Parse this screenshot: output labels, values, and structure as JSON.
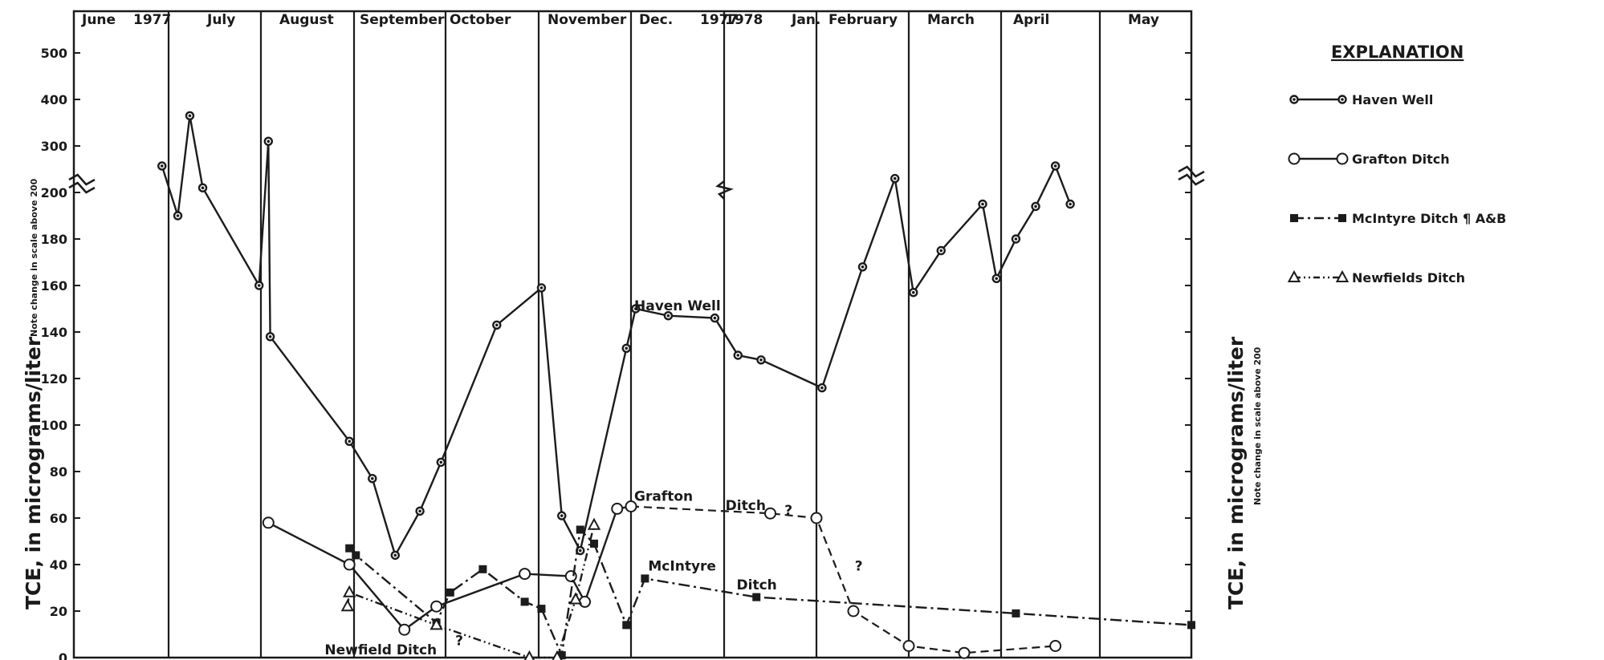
{
  "chart_data": {
    "type": "line",
    "month_labels": [
      "June",
      "1977",
      "July",
      "August",
      "September",
      "October",
      "November",
      "Dec.",
      "1977",
      "1978",
      "Jan.",
      "February",
      "March",
      "April",
      "May"
    ],
    "y_tick_labels": [
      "0",
      "20",
      "40",
      "60",
      "80",
      "100",
      "120",
      "140",
      "160",
      "180",
      "200",
      "300",
      "400",
      "500"
    ],
    "ylabel_left": "TCE, in micrograms/liter",
    "ylabel_left_note": "Note change in scale above 200",
    "ylabel_right": "TCE, in micrograms/liter",
    "ylabel_right_note": "Note change in scale above 200",
    "x_unit": "months since start of June 1977",
    "xlim": [
      0,
      12
    ],
    "ylim": [
      0,
      500
    ],
    "y_scale_break": 200,
    "legend": {
      "title": "EXPLANATION",
      "entries": [
        {
          "label": "Haven Well",
          "style": "solid-dot"
        },
        {
          "label": "Grafton Ditch",
          "style": "solid-open-circle"
        },
        {
          "label": "McIntyre Ditch ¶ A&B",
          "style": "dash-dot-square"
        },
        {
          "label": "Newfields Ditch",
          "style": "dash-dot-dot-triangle"
        }
      ],
      "placement": "top-right"
    },
    "annotations": [
      {
        "text": "Haven Well",
        "x": 6.0,
        "y": 148
      },
      {
        "text": "Grafton",
        "x": 6.0,
        "y": 66
      },
      {
        "text": "Ditch",
        "x": 6.98,
        "y": 62
      },
      {
        "text": "?",
        "x": 7.62,
        "y": 60
      },
      {
        "text": "?",
        "x": 8.38,
        "y": 36
      },
      {
        "text": "McIntyre",
        "x": 6.15,
        "y": 36
      },
      {
        "text": "Ditch",
        "x": 7.1,
        "y": 28
      },
      {
        "text": "Newfield Ditch",
        "x": 2.65,
        "y": 0
      },
      {
        "text": "?",
        "x": 4.07,
        "y": 4
      }
    ],
    "series": [
      {
        "name": "Haven Well",
        "line": "solid",
        "marker": "dot",
        "points": [
          [
            0.93,
            257
          ],
          [
            1.1,
            190
          ],
          [
            1.23,
            365
          ],
          [
            1.37,
            210
          ],
          [
            1.98,
            160
          ],
          [
            2.08,
            310
          ],
          [
            2.1,
            138
          ],
          [
            2.95,
            93
          ],
          [
            3.2,
            77
          ],
          [
            3.45,
            44
          ],
          [
            3.72,
            63
          ],
          [
            3.95,
            84
          ],
          [
            4.55,
            143
          ],
          [
            5.03,
            159
          ],
          [
            5.25,
            61
          ],
          [
            5.45,
            46
          ],
          [
            5.95,
            133
          ],
          [
            6.05,
            150
          ],
          [
            6.4,
            147
          ],
          [
            6.9,
            146
          ],
          [
            7.15,
            130
          ],
          [
            7.4,
            128
          ],
          [
            8.06,
            116
          ],
          [
            8.5,
            168
          ],
          [
            8.85,
            230
          ],
          [
            9.05,
            157
          ],
          [
            9.35,
            175
          ],
          [
            9.8,
            195
          ],
          [
            9.95,
            163
          ],
          [
            10.15,
            180
          ],
          [
            10.35,
            194
          ],
          [
            10.55,
            257
          ],
          [
            10.7,
            195
          ]
        ]
      },
      {
        "name": "Grafton Ditch",
        "line": "solid-then-dashed",
        "marker": "open-circle",
        "points": [
          [
            2.08,
            58
          ],
          [
            2.95,
            40
          ],
          [
            3.55,
            12
          ],
          [
            3.9,
            22
          ],
          [
            4.85,
            36
          ],
          [
            5.35,
            35
          ],
          [
            5.5,
            24
          ],
          [
            5.85,
            64
          ],
          [
            6.0,
            65
          ],
          [
            7.5,
            62
          ],
          [
            8.0,
            60
          ],
          [
            8.4,
            20
          ],
          [
            9.0,
            5
          ],
          [
            9.6,
            2
          ],
          [
            10.55,
            5
          ]
        ]
      },
      {
        "name": "McIntyre Ditch",
        "line": "dash-dot",
        "marker": "filled-square",
        "points": [
          [
            2.95,
            47
          ],
          [
            3.02,
            44
          ],
          [
            3.9,
            15
          ],
          [
            4.05,
            28
          ],
          [
            4.4,
            38
          ],
          [
            4.85,
            24
          ],
          [
            5.03,
            21
          ],
          [
            5.25,
            1
          ],
          [
            5.45,
            55
          ],
          [
            5.6,
            49
          ],
          [
            5.95,
            14
          ],
          [
            6.15,
            34
          ],
          [
            7.35,
            26
          ],
          [
            10.15,
            19
          ],
          [
            12.0,
            14
          ]
        ]
      },
      {
        "name": "Newfields Ditch",
        "line": "dash-dot-dot",
        "marker": "open-triangle",
        "points": [
          [
            2.93,
            22
          ],
          [
            2.95,
            28
          ],
          [
            3.9,
            14
          ],
          [
            4.9,
            0
          ],
          [
            5.2,
            0
          ],
          [
            5.4,
            25
          ],
          [
            5.6,
            57
          ]
        ]
      }
    ]
  }
}
